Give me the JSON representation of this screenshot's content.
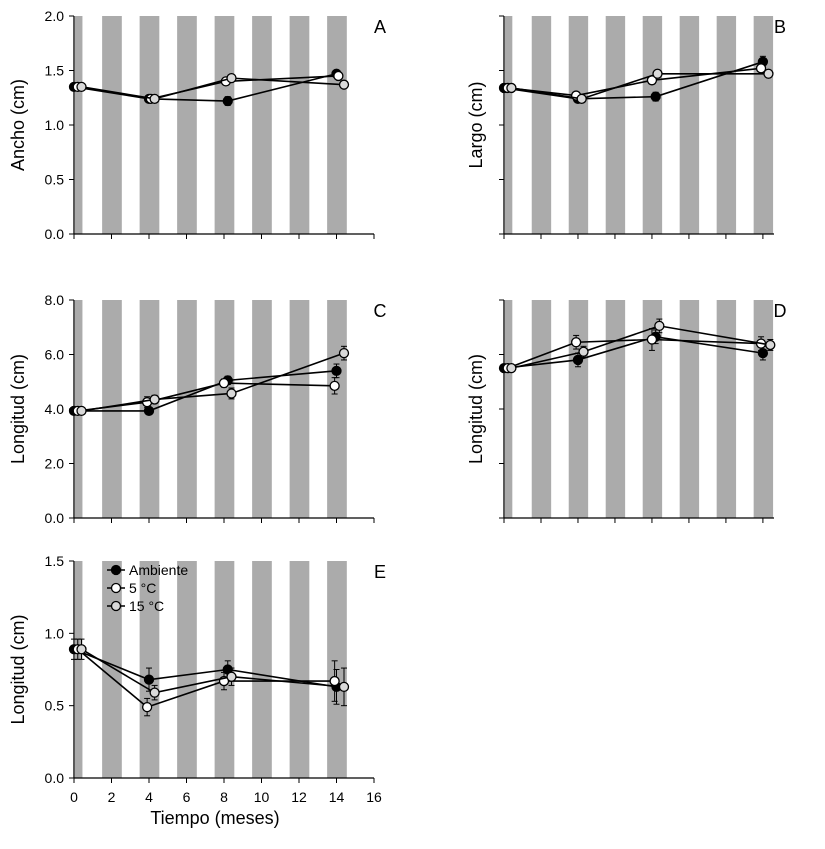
{
  "colors": {
    "band": "#ababab",
    "axis": "#000000",
    "series_fills": [
      "#000000",
      "#ffffff",
      "#d9d9d9"
    ],
    "marker_stroke": "#000000"
  },
  "chart_data": [
    {
      "type": "line",
      "panel_letter": "A",
      "ylabel": "Ancho (cm)",
      "xlabel": "",
      "ylim": [
        0,
        2.0
      ],
      "yticks": [
        "0.0",
        "0.5",
        "1.0",
        "1.5",
        "2.0"
      ],
      "xlim": [
        0,
        16
      ],
      "show_x_tick_labels": false,
      "series": [
        {
          "x": [
            0.0,
            4.0,
            8.2,
            14.0
          ],
          "y": [
            1.35,
            1.24,
            1.22,
            1.47
          ],
          "err": [
            0.02,
            0.02,
            0.04,
            0.03
          ]
        },
        {
          "x": [
            0.2,
            4.1,
            8.1,
            14.1
          ],
          "y": [
            1.35,
            1.24,
            1.4,
            1.45
          ],
          "err": [
            0.02,
            0.02,
            0.03,
            0.03
          ]
        },
        {
          "x": [
            0.4,
            4.3,
            8.4,
            14.4
          ],
          "y": [
            1.35,
            1.24,
            1.43,
            1.37
          ],
          "err": [
            0.02,
            0.02,
            0.03,
            0.02
          ]
        }
      ]
    },
    {
      "type": "line",
      "panel_letter": "B",
      "ylabel": "Largo (cm)",
      "xlabel": "",
      "ylim": [
        0,
        2.0
      ],
      "yticks": [],
      "xlim": [
        0,
        16
      ],
      "show_x_tick_labels": false,
      "series": [
        {
          "x": [
            0.0,
            4.0,
            8.2,
            14.0
          ],
          "y": [
            1.34,
            1.24,
            1.26,
            1.58
          ],
          "err": [
            0.02,
            0.02,
            0.04,
            0.05
          ]
        },
        {
          "x": [
            0.2,
            3.9,
            8.0,
            13.9
          ],
          "y": [
            1.34,
            1.27,
            1.41,
            1.52
          ],
          "err": [
            0.02,
            0.02,
            0.03,
            0.03
          ]
        },
        {
          "x": [
            0.4,
            4.2,
            8.3,
            14.3
          ],
          "y": [
            1.34,
            1.24,
            1.47,
            1.47
          ],
          "err": [
            0.02,
            0.02,
            0.03,
            0.02
          ]
        }
      ]
    },
    {
      "type": "line",
      "panel_letter": "C",
      "ylabel": "Longitud (cm)",
      "xlabel": "",
      "ylim": [
        0,
        8.0
      ],
      "yticks": [
        "0.0",
        "2.0",
        "4.0",
        "6.0",
        "8.0"
      ],
      "xlim": [
        0,
        16
      ],
      "show_x_tick_labels": false,
      "series": [
        {
          "x": [
            0.0,
            4.0,
            8.2,
            14.0
          ],
          "y": [
            3.93,
            3.93,
            5.05,
            5.4
          ],
          "err": [
            0.1,
            0.1,
            0.15,
            0.25
          ]
        },
        {
          "x": [
            0.2,
            3.9,
            8.0,
            13.9
          ],
          "y": [
            3.93,
            4.25,
            4.95,
            4.85
          ],
          "err": [
            0.1,
            0.2,
            0.15,
            0.3
          ]
        },
        {
          "x": [
            0.4,
            4.3,
            8.4,
            14.4
          ],
          "y": [
            3.93,
            4.35,
            4.57,
            6.05
          ],
          "err": [
            0.1,
            0.15,
            0.2,
            0.25
          ]
        }
      ]
    },
    {
      "type": "line",
      "panel_letter": "D",
      "ylabel": "Longitud (cm)",
      "xlabel": "",
      "ylim": [
        0,
        8.0
      ],
      "yticks": [],
      "xlim": [
        0,
        16
      ],
      "show_x_tick_labels": false,
      "series": [
        {
          "x": [
            0.0,
            4.0,
            8.2,
            14.0
          ],
          "y": [
            5.5,
            5.8,
            6.65,
            6.05
          ],
          "err": [
            0.1,
            0.25,
            0.25,
            0.25
          ]
        },
        {
          "x": [
            0.2,
            3.9,
            8.0,
            13.9
          ],
          "y": [
            5.5,
            6.45,
            6.55,
            6.4
          ],
          "err": [
            0.1,
            0.25,
            0.4,
            0.25
          ]
        },
        {
          "x": [
            0.4,
            4.3,
            8.4,
            14.4
          ],
          "y": [
            5.5,
            6.1,
            7.05,
            6.35
          ],
          "err": [
            0.1,
            0.2,
            0.25,
            0.2
          ]
        }
      ]
    },
    {
      "type": "line",
      "panel_letter": "E",
      "ylabel": "Longitud (cm)",
      "xlabel": "Tiempo (meses)",
      "ylim": [
        0,
        1.5
      ],
      "yticks": [
        "0.0",
        "0.5",
        "1.0",
        "1.5"
      ],
      "xlim": [
        0,
        16
      ],
      "xticks": [
        "0",
        "2",
        "4",
        "6",
        "8",
        "10",
        "12",
        "14",
        "16"
      ],
      "show_x_tick_labels": true,
      "legend": [
        "Ambiente",
        "5 °C",
        "15 °C"
      ],
      "legend_position": "top-left",
      "series": [
        {
          "name": "Ambiente",
          "x": [
            0.0,
            4.0,
            8.2,
            14.0
          ],
          "y": [
            0.89,
            0.68,
            0.75,
            0.63
          ],
          "err": [
            0.07,
            0.08,
            0.06,
            0.12
          ]
        },
        {
          "name": "5 °C",
          "x": [
            0.2,
            3.9,
            8.0,
            13.9
          ],
          "y": [
            0.89,
            0.49,
            0.67,
            0.67
          ],
          "err": [
            0.07,
            0.06,
            0.06,
            0.14
          ]
        },
        {
          "name": "15 °C",
          "x": [
            0.4,
            4.3,
            8.4,
            14.4
          ],
          "y": [
            0.89,
            0.59,
            0.7,
            0.63
          ],
          "err": [
            0.07,
            0.05,
            0.06,
            0.13
          ]
        }
      ]
    }
  ]
}
